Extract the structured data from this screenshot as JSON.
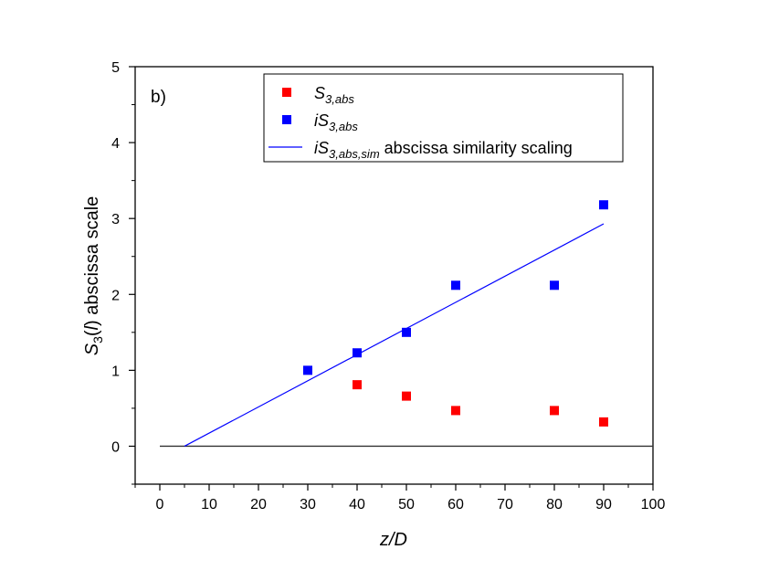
{
  "chart_data": {
    "type": "scatter",
    "panel_label": "b)",
    "xlabel": "z/D",
    "ylabel_main": "S",
    "ylabel_sub": "3",
    "ylabel_arg": "(l)",
    "ylabel_rest": " abscissa scale",
    "xlim": [
      -5,
      100
    ],
    "ylim": [
      -0.5,
      5
    ],
    "xticks": [
      0,
      10,
      20,
      30,
      40,
      50,
      60,
      70,
      80,
      90,
      100
    ],
    "xtick_labels": [
      "0",
      "10",
      "20",
      "30",
      "40",
      "50",
      "60",
      "70",
      "80",
      "90",
      "100"
    ],
    "yticks": [
      0,
      1,
      2,
      3,
      4,
      5
    ],
    "ytick_labels": [
      "0",
      "1",
      "2",
      "3",
      "4",
      "5"
    ],
    "zero_line": {
      "x": [
        0,
        100
      ],
      "y": [
        0,
        0
      ],
      "color": "#333333"
    },
    "series": [
      {
        "name": "S3,abs",
        "legend_main": "S",
        "legend_sub": "3,abs",
        "legend_rest": "",
        "marker": "square",
        "color": "#ff0000",
        "x": [
          40,
          50,
          60,
          80,
          90
        ],
        "y": [
          0.81,
          0.66,
          0.47,
          0.47,
          0.32
        ]
      },
      {
        "name": "iS3,abs",
        "legend_main": "iS",
        "legend_sub": "3,abs",
        "legend_rest": "",
        "marker": "square",
        "color": "#0000ff",
        "x": [
          30,
          40,
          50,
          60,
          80,
          90
        ],
        "y": [
          1.0,
          1.23,
          1.5,
          2.12,
          2.12,
          3.18
        ]
      },
      {
        "name": "iS3,abs,sim abscissa similarity scaling",
        "legend_main": "iS",
        "legend_sub": "3,abs,sim",
        "legend_rest": " abscissa similarity scaling",
        "marker": "line",
        "color": "#0000ff",
        "x": [
          5,
          90
        ],
        "y": [
          0,
          2.93
        ]
      }
    ],
    "legend_position": "top-right"
  }
}
